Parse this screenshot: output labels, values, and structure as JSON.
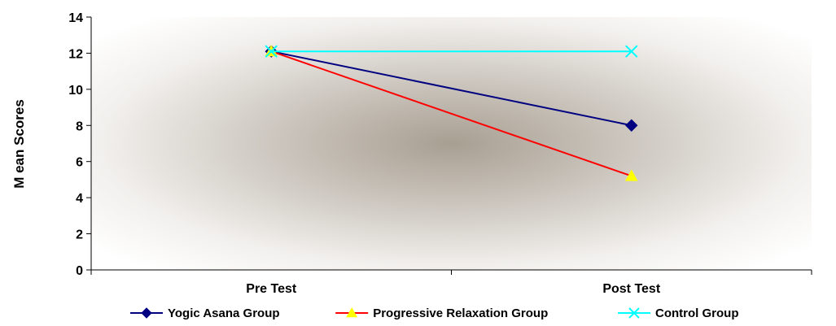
{
  "chart_data": {
    "type": "line",
    "categories": [
      "Pre Test",
      "Post Test"
    ],
    "ylabel": "M ean Scores",
    "xlabel": "",
    "ylim": [
      0,
      14
    ],
    "yticks": [
      0,
      2,
      4,
      6,
      8,
      10,
      12,
      14
    ],
    "grid": false,
    "legend_position": "bottom",
    "series": [
      {
        "name": "Yogic Asana Group",
        "values": [
          12.1,
          8.0
        ],
        "color": "#000080",
        "marker": "diamond"
      },
      {
        "name": "Progressive Relaxation Group",
        "values": [
          12.1,
          5.2
        ],
        "color": "#ff0000",
        "marker": "triangle",
        "marker_color": "#ffff00"
      },
      {
        "name": "Control Group",
        "values": [
          12.1,
          12.1
        ],
        "color": "#00ffff",
        "marker": "x"
      }
    ]
  }
}
